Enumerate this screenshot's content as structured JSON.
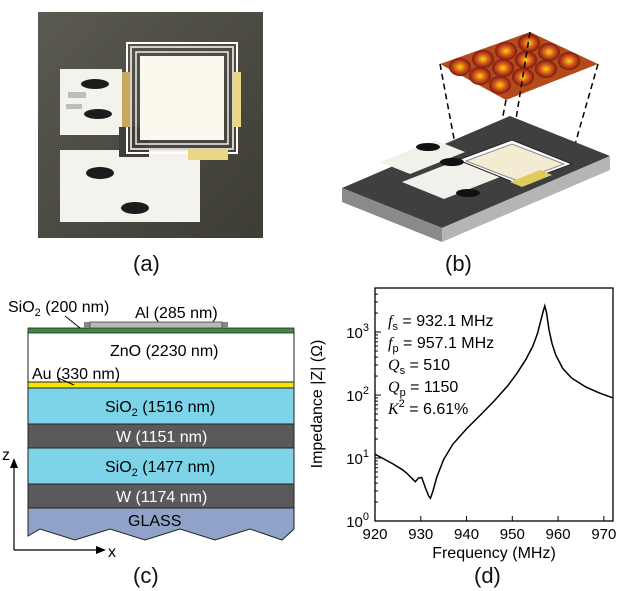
{
  "panels": {
    "a": "(a)",
    "b": "(b)",
    "c": "(c)",
    "d": "(d)"
  },
  "stack": {
    "top_oxide": "SiO",
    "top_oxide_sub": "2",
    "top_oxide_thk": " (200 nm)",
    "electrode": "Al (285 nm)",
    "layers": [
      {
        "name": "ZnO (2230 nm)",
        "color": "#ffffff"
      },
      {
        "name": "Au (330 nm)",
        "color": "#f5e600"
      },
      {
        "name": "SiO",
        "sub": "2",
        "thk": " (1516 nm)",
        "color": "#7dd3e8"
      },
      {
        "name": "W (1151 nm)",
        "color": "#5a5a5a"
      },
      {
        "name": "SiO",
        "sub": "2",
        "thk": " (1477 nm)",
        "color": "#7dd3e8"
      },
      {
        "name": "W (1174 nm)",
        "color": "#5a5a5a"
      },
      {
        "name": "GLASS",
        "color": "#8fa3c8"
      }
    ],
    "axis_z": "z",
    "axis_x": "x",
    "green_color": "#3f8a3f"
  },
  "params": {
    "fs_sym": "f",
    "fs_sub": "s",
    "fs_val": " = 932.1 MHz",
    "fp_sym": "f",
    "fp_sub": "p",
    "fp_val": " = 957.1 MHz",
    "qs_sym": "Q",
    "qs_sub": "s",
    "qs_val": " = 510",
    "qp_sym": "Q",
    "qp_sub": "p",
    "qp_val": " = 1150",
    "k2_sym": "K",
    "k2_sup": "2",
    "k2_val": " = 6.61%"
  },
  "chart_data": {
    "type": "line",
    "title": "",
    "xlabel": "Frequency (MHz)",
    "ylabel": "Impedance |Z| (Ω)",
    "xlim": [
      920,
      972
    ],
    "ylim": [
      1,
      5000
    ],
    "yscale": "log",
    "xticks": [
      920,
      930,
      940,
      950,
      960,
      970
    ],
    "yticks": [
      {
        "base": "10",
        "exp": "0"
      },
      {
        "base": "10",
        "exp": "1"
      },
      {
        "base": "10",
        "exp": "2"
      },
      {
        "base": "10",
        "exp": "3"
      }
    ],
    "series": [
      {
        "x": [
          920,
          922,
          924,
          926,
          927,
          928,
          928.8,
          929.5,
          930.2,
          931,
          931.7,
          932.1,
          932.6,
          933.5,
          935,
          937,
          940,
          943,
          946,
          949,
          951,
          953,
          954.5,
          955.5,
          956.2,
          956.8,
          957.1,
          957.5,
          958,
          958.7,
          959.5,
          961,
          963,
          966,
          969,
          972
        ],
        "y": [
          11.5,
          9.6,
          8.0,
          6.5,
          5.7,
          4.8,
          4.2,
          4.8,
          4.9,
          3.4,
          2.5,
          2.3,
          2.9,
          5.0,
          9.5,
          16.5,
          29,
          48,
          80,
          140,
          220,
          370,
          600,
          950,
          1500,
          2200,
          2600,
          2000,
          1100,
          650,
          430,
          265,
          185,
          135,
          108,
          90
        ]
      }
    ]
  }
}
